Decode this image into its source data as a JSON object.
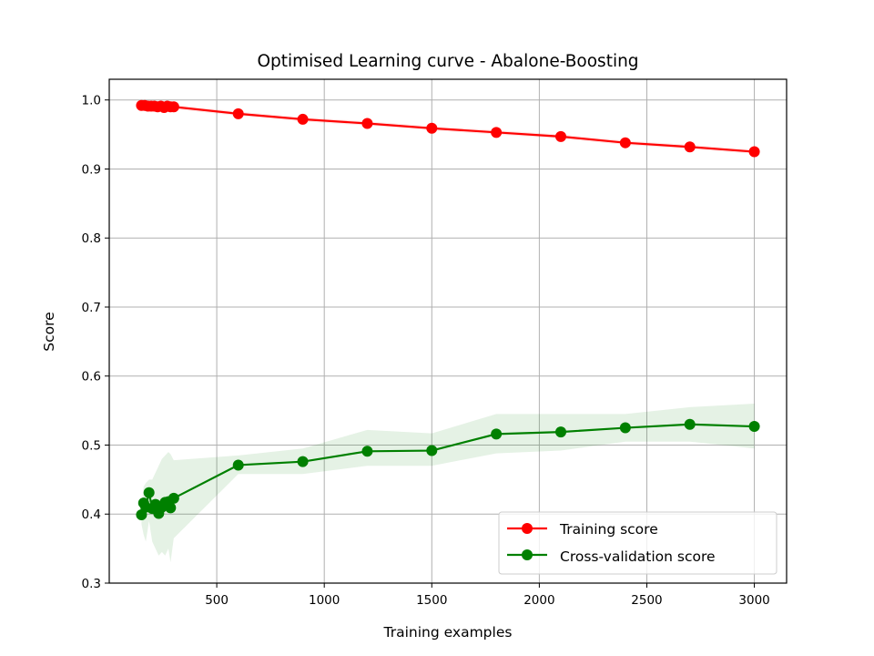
{
  "chart_data": {
    "type": "line",
    "title": "Optimised Learning curve - Abalone-Boosting",
    "xlabel": "Training examples",
    "ylabel": "Score",
    "xlim": [
      0,
      3150
    ],
    "ylim": [
      0.3,
      1.03
    ],
    "grid": true,
    "legend_position": "lower right",
    "x_ticks": [
      {
        "value": 500,
        "label": "500"
      },
      {
        "value": 1000,
        "label": "1000"
      },
      {
        "value": 1500,
        "label": "1500"
      },
      {
        "value": 2000,
        "label": "2000"
      },
      {
        "value": 2500,
        "label": "2500"
      },
      {
        "value": 3000,
        "label": "3000"
      }
    ],
    "y_ticks": [
      {
        "value": 0.3,
        "label": "0.3"
      },
      {
        "value": 0.4,
        "label": "0.4"
      },
      {
        "value": 0.5,
        "label": "0.5"
      },
      {
        "value": 0.6,
        "label": "0.6"
      },
      {
        "value": 0.7,
        "label": "0.7"
      },
      {
        "value": 0.8,
        "label": "0.8"
      },
      {
        "value": 0.9,
        "label": "0.9"
      },
      {
        "value": 1.0,
        "label": "1.0"
      }
    ],
    "series": [
      {
        "name": "Training score",
        "color": "#ff0000",
        "points": [
          {
            "x": 150,
            "y": 0.992,
            "lo": 0.989,
            "hi": 0.995
          },
          {
            "x": 165,
            "y": 0.992,
            "lo": 0.989,
            "hi": 0.995
          },
          {
            "x": 180,
            "y": 0.991,
            "lo": 0.988,
            "hi": 0.994
          },
          {
            "x": 195,
            "y": 0.991,
            "lo": 0.988,
            "hi": 0.994
          },
          {
            "x": 210,
            "y": 0.991,
            "lo": 0.988,
            "hi": 0.994
          },
          {
            "x": 225,
            "y": 0.99,
            "lo": 0.987,
            "hi": 0.993
          },
          {
            "x": 240,
            "y": 0.991,
            "lo": 0.988,
            "hi": 0.994
          },
          {
            "x": 255,
            "y": 0.989,
            "lo": 0.986,
            "hi": 0.992
          },
          {
            "x": 270,
            "y": 0.991,
            "lo": 0.988,
            "hi": 0.994
          },
          {
            "x": 285,
            "y": 0.99,
            "lo": 0.987,
            "hi": 0.993
          },
          {
            "x": 300,
            "y": 0.99,
            "lo": 0.987,
            "hi": 0.993
          },
          {
            "x": 600,
            "y": 0.98,
            "lo": 0.977,
            "hi": 0.983
          },
          {
            "x": 900,
            "y": 0.972,
            "lo": 0.969,
            "hi": 0.975
          },
          {
            "x": 1200,
            "y": 0.966,
            "lo": 0.963,
            "hi": 0.969
          },
          {
            "x": 1500,
            "y": 0.959,
            "lo": 0.956,
            "hi": 0.962
          },
          {
            "x": 1800,
            "y": 0.953,
            "lo": 0.95,
            "hi": 0.956
          },
          {
            "x": 2100,
            "y": 0.947,
            "lo": 0.944,
            "hi": 0.95
          },
          {
            "x": 2400,
            "y": 0.938,
            "lo": 0.935,
            "hi": 0.941
          },
          {
            "x": 2700,
            "y": 0.932,
            "lo": 0.929,
            "hi": 0.935
          },
          {
            "x": 3000,
            "y": 0.925,
            "lo": 0.922,
            "hi": 0.928
          }
        ]
      },
      {
        "name": "Cross-validation score",
        "color": "#008000",
        "points": [
          {
            "x": 150,
            "y": 0.399,
            "lo": 0.385,
            "hi": 0.413
          },
          {
            "x": 160,
            "y": 0.416,
            "lo": 0.37,
            "hi": 0.44
          },
          {
            "x": 170,
            "y": 0.41,
            "lo": 0.36,
            "hi": 0.445
          },
          {
            "x": 185,
            "y": 0.431,
            "lo": 0.39,
            "hi": 0.45
          },
          {
            "x": 200,
            "y": 0.408,
            "lo": 0.36,
            "hi": 0.45
          },
          {
            "x": 215,
            "y": 0.414,
            "lo": 0.35,
            "hi": 0.46
          },
          {
            "x": 230,
            "y": 0.401,
            "lo": 0.34,
            "hi": 0.47
          },
          {
            "x": 245,
            "y": 0.41,
            "lo": 0.345,
            "hi": 0.48
          },
          {
            "x": 260,
            "y": 0.417,
            "lo": 0.34,
            "hi": 0.485
          },
          {
            "x": 275,
            "y": 0.418,
            "lo": 0.35,
            "hi": 0.49
          },
          {
            "x": 285,
            "y": 0.409,
            "lo": 0.33,
            "hi": 0.487
          },
          {
            "x": 300,
            "y": 0.423,
            "lo": 0.365,
            "hi": 0.478
          },
          {
            "x": 600,
            "y": 0.471,
            "lo": 0.458,
            "hi": 0.485
          },
          {
            "x": 900,
            "y": 0.476,
            "lo": 0.458,
            "hi": 0.495
          },
          {
            "x": 1200,
            "y": 0.491,
            "lo": 0.47,
            "hi": 0.522
          },
          {
            "x": 1500,
            "y": 0.492,
            "lo": 0.47,
            "hi": 0.517
          },
          {
            "x": 1800,
            "y": 0.516,
            "lo": 0.488,
            "hi": 0.545
          },
          {
            "x": 2100,
            "y": 0.519,
            "lo": 0.492,
            "hi": 0.545
          },
          {
            "x": 2400,
            "y": 0.525,
            "lo": 0.505,
            "hi": 0.545
          },
          {
            "x": 2700,
            "y": 0.53,
            "lo": 0.505,
            "hi": 0.555
          },
          {
            "x": 3000,
            "y": 0.527,
            "lo": 0.495,
            "hi": 0.56
          }
        ]
      }
    ]
  }
}
